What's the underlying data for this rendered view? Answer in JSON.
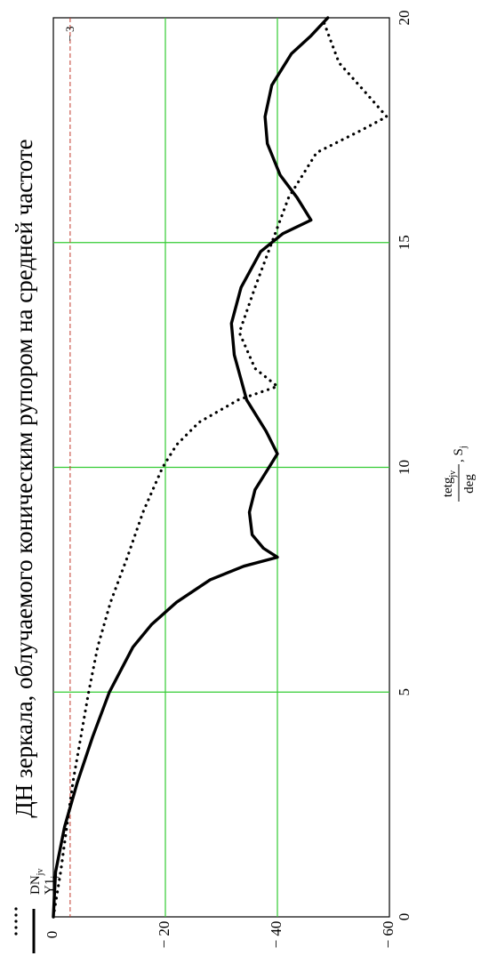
{
  "chart_data": {
    "type": "line",
    "title": "ДН зеркала, облучаемого коническим рупором на средней частоте",
    "xlabel": {
      "numerator": "tetg",
      "numerator_sub": "jv",
      "denominator": "deg",
      "suffix": ", S",
      "suffix_sub": "j"
    },
    "ylabel": {
      "series1": "DN",
      "series1_sub": "jv",
      "series2": "Y1",
      "series2_sub": "j"
    },
    "xlim": [
      0,
      20
    ],
    "ylim": [
      -60,
      0
    ],
    "x_ticks": [
      "0",
      "5",
      "10",
      "15",
      "20"
    ],
    "y_ticks": [
      "0",
      "− 20",
      "− 40",
      "− 60"
    ],
    "grid": true,
    "reference_line": {
      "value": -3,
      "label": "− 3",
      "color": "#c0392b"
    },
    "colors": {
      "grid": "#33cc33",
      "series": "#000000"
    },
    "series": [
      {
        "name": "DN",
        "style": "dotted",
        "points": [
          [
            0,
            0
          ],
          [
            1,
            -1.3
          ],
          [
            2,
            -2.4
          ],
          [
            3,
            -3.5
          ],
          [
            4,
            -4.9
          ],
          [
            5,
            -6.3
          ],
          [
            6,
            -7.9
          ],
          [
            7,
            -10.2
          ],
          [
            8,
            -13.2
          ],
          [
            9,
            -16.0
          ],
          [
            10,
            -19.5
          ],
          [
            10.5,
            -22.0
          ],
          [
            11,
            -26.0
          ],
          [
            11.5,
            -33.0
          ],
          [
            11.8,
            -40.0
          ],
          [
            12.2,
            -36.0
          ],
          [
            13,
            -33.2
          ],
          [
            14,
            -36.0
          ],
          [
            15,
            -39.0
          ],
          [
            16,
            -42.0
          ],
          [
            17,
            -47.0
          ],
          [
            17.5,
            -55.0
          ],
          [
            17.8,
            -59.5
          ],
          [
            18.3,
            -56.0
          ],
          [
            19,
            -51.0
          ],
          [
            19.5,
            -49.5
          ],
          [
            20,
            -48.0
          ]
        ]
      },
      {
        "name": "Y1",
        "style": "solid",
        "points": [
          [
            0,
            0
          ],
          [
            1,
            -0.4
          ],
          [
            2,
            -2.0
          ],
          [
            3,
            -4.3
          ],
          [
            4,
            -7.0
          ],
          [
            5,
            -10.0
          ],
          [
            6,
            -14.2
          ],
          [
            6.5,
            -17.5
          ],
          [
            7,
            -22.0
          ],
          [
            7.5,
            -28.0
          ],
          [
            7.8,
            -34.0
          ],
          [
            8.0,
            -40.0
          ],
          [
            8.2,
            -37.5
          ],
          [
            8.5,
            -35.5
          ],
          [
            9.0,
            -35.0
          ],
          [
            9.5,
            -36.0
          ],
          [
            10.0,
            -38.5
          ],
          [
            10.3,
            -40.0
          ],
          [
            10.8,
            -38.0
          ],
          [
            11.5,
            -34.5
          ],
          [
            12.5,
            -32.3
          ],
          [
            13.2,
            -31.8
          ],
          [
            14.0,
            -33.5
          ],
          [
            14.8,
            -37.0
          ],
          [
            15.2,
            -41.0
          ],
          [
            15.5,
            -46.0
          ],
          [
            16.0,
            -43.5
          ],
          [
            16.5,
            -40.5
          ],
          [
            17.2,
            -38.2
          ],
          [
            17.8,
            -37.8
          ],
          [
            18.5,
            -39.0
          ],
          [
            19.2,
            -42.5
          ],
          [
            19.6,
            -46.0
          ],
          [
            20.0,
            -49.0
          ]
        ]
      }
    ]
  }
}
